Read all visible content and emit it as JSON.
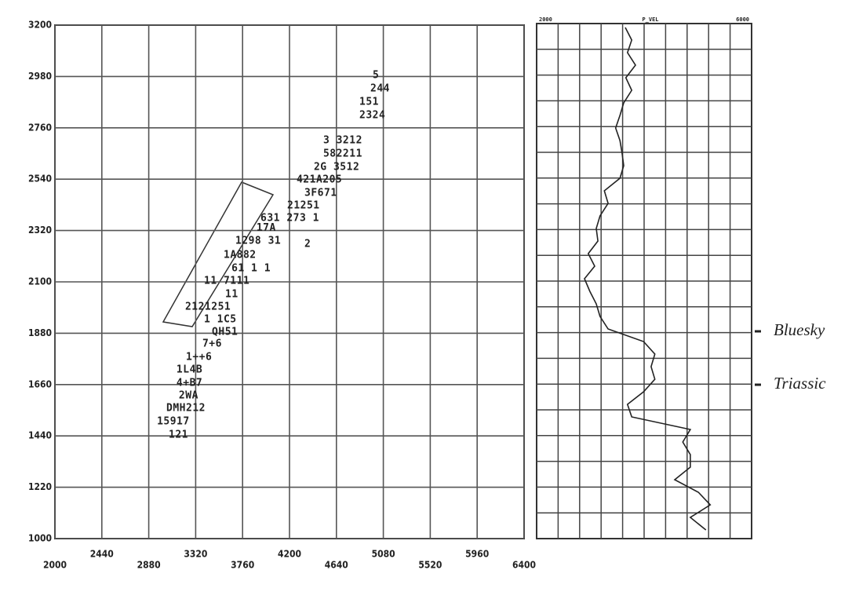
{
  "chart_data": [
    {
      "type": "scatter",
      "xlim": [
        2000,
        6400
      ],
      "xticks": [
        2000,
        2440,
        2880,
        3320,
        3760,
        4200,
        4640,
        5080,
        5520,
        5960,
        6400
      ],
      "ylim": [
        1000,
        3200
      ],
      "yticks": [
        1000,
        1220,
        1440,
        1660,
        1880,
        2100,
        2320,
        2540,
        2760,
        2980,
        3200
      ],
      "grid": true,
      "color": "#222222",
      "series": [
        {
          "x": [
            4980,
            4958,
            4855,
            4855,
            4516,
            4516,
            4428,
            4266,
            4340,
            4178,
            3928,
            3890,
            3692,
            4340,
            3582,
            3656,
            3398,
            3597,
            3221,
            3398,
            3472,
            3383,
            3229,
            3140,
            3140,
            3162,
            3045,
            2957,
            3067
          ],
          "y": [
            2985,
            2928,
            2870,
            2813,
            2705,
            2648,
            2591,
            2537,
            2480,
            2426,
            2372,
            2330,
            2275,
            2262,
            2214,
            2157,
            2103,
            2046,
            1992,
            1939,
            1885,
            1834,
            1777,
            1723,
            1666,
            1612,
            1558,
            1501,
            1444
          ],
          "value_labels": [
            "5",
            "244",
            "151",
            "2324",
            "3   3212",
            "582211",
            "2G 3512",
            "421A205",
            "3F671",
            "21251",
            "631 273   1",
            "17A",
            "1298 31",
            "2",
            "1A882",
            "61  1  1",
            "11  7111",
            "11",
            "2121251",
            "1 1C5",
            "QH51",
            "7+6",
            "1++6",
            "1L4B",
            "4+B7",
            "2WA",
            "DMH212",
            "15917",
            "121"
          ]
        }
      ]
    },
    {
      "type": "line",
      "header": [
        "2000",
        "P_VEL",
        "6000"
      ],
      "xlim": [
        2000,
        6000
      ],
      "color": "#222222",
      "values": [
        3650,
        3770,
        3690,
        3840,
        3660,
        3770,
        3620,
        3550,
        3470,
        3550,
        3590,
        3620,
        3550,
        3260,
        3330,
        3180,
        3110,
        3140,
        2960,
        3080,
        2890,
        2990,
        3110,
        3180,
        3330,
        3990,
        4200,
        4130,
        4200,
        3990,
        3690,
        3770,
        4860,
        4720,
        4860,
        4860,
        4570,
        5010,
        5230,
        4860,
        5150
      ],
      "markers": [
        "Bluesky",
        "Triassic"
      ]
    }
  ]
}
